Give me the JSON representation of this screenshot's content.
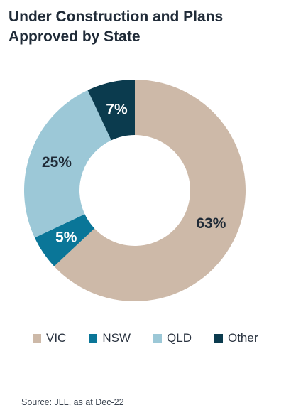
{
  "title": "Under Construction and Plans Approved by State",
  "source": "Source: JLL, as at Dec-22",
  "chart_data": {
    "type": "pie",
    "donut": true,
    "title": "Under Construction and Plans Approved by State",
    "categories": [
      "VIC",
      "NSW",
      "QLD",
      "Other"
    ],
    "values": [
      63,
      5,
      25,
      7
    ],
    "labels": [
      "63%",
      "5%",
      "25%",
      "7%"
    ],
    "colors": [
      "#cdb9a8",
      "#0a7698",
      "#9cc8d7",
      "#0b3b4e"
    ],
    "label_colors": [
      "#1f2a36",
      "#ffffff",
      "#1f2a36",
      "#ffffff"
    ],
    "legend_position": "bottom",
    "unit": "%"
  }
}
